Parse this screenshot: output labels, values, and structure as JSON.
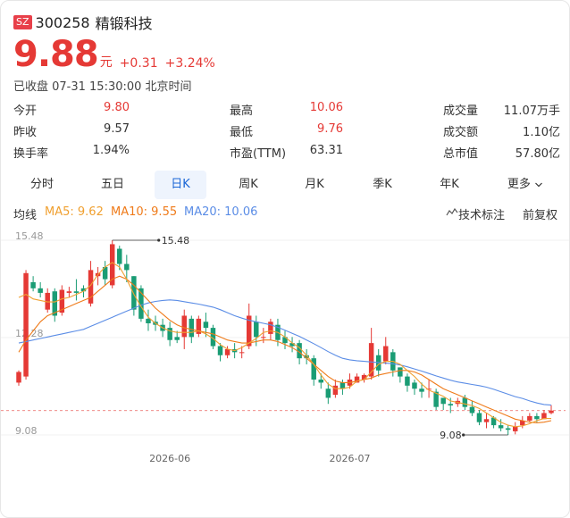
{
  "header": {
    "market": "SZ",
    "code": "300258",
    "name": "精锻科技"
  },
  "quote": {
    "price": "9.88",
    "unit": "元",
    "change": "+0.31",
    "change_pct": "+3.24%",
    "status": "已收盘 07-31 15:30:00 北京时间"
  },
  "stats": [
    [
      {
        "label": "今开",
        "value": "9.80",
        "color": "red"
      },
      {
        "label": "最高",
        "value": "10.06",
        "color": "red"
      },
      {
        "label": "成交量",
        "value": "11.07万手",
        "color": "normal"
      }
    ],
    [
      {
        "label": "昨收",
        "value": "9.57",
        "color": "normal"
      },
      {
        "label": "最低",
        "value": "9.76",
        "color": "red"
      },
      {
        "label": "成交额",
        "value": "1.10亿",
        "color": "normal"
      }
    ],
    [
      {
        "label": "换手率",
        "value": "1.94%",
        "color": "normal"
      },
      {
        "label": "市盈(TTM)",
        "value": "63.31",
        "color": "normal"
      },
      {
        "label": "总市值",
        "value": "57.80亿",
        "color": "normal"
      }
    ]
  ],
  "tabs": {
    "items": [
      "分时",
      "五日",
      "日K",
      "周K",
      "月K",
      "季K",
      "年K",
      "更多"
    ],
    "active": "日K",
    "more_icon": "chevron-down-icon"
  },
  "legend": {
    "label": "均线",
    "ma5": "MA5: 9.62",
    "ma10": "MA10: 9.55",
    "ma20": "MA20: 10.06",
    "tech_label": "技术标注",
    "tech_icon": "indicator-icon",
    "adjust": "前复权"
  },
  "colors": {
    "up": "#e53935",
    "down": "#1a9c74",
    "ma5": "#f0a030",
    "ma10": "#ef7b1a",
    "ma20": "#5b8de6",
    "accent": "#1a66d6"
  },
  "chart_data": {
    "type": "candlestick",
    "y_tick_labels": [
      "15.48",
      "12.28",
      "9.08"
    ],
    "ylim": [
      9.08,
      15.48
    ],
    "x_tick_labels": [
      "2026-06",
      "2026-07"
    ],
    "annotations": {
      "high": "15.48",
      "low": "9.08",
      "current_line": 9.88
    },
    "candles": [
      [
        10.8,
        11.15,
        10.7,
        11.2
      ],
      [
        11.0,
        14.4,
        10.9,
        14.5
      ],
      [
        14.1,
        13.9,
        13.8,
        14.3
      ],
      [
        13.9,
        13.75,
        13.6,
        14.1
      ],
      [
        13.2,
        13.75,
        13.1,
        13.9
      ],
      [
        13.8,
        13.0,
        12.8,
        13.9
      ],
      [
        13.1,
        13.85,
        13.0,
        14.0
      ],
      [
        13.75,
        13.8,
        13.6,
        13.95
      ],
      [
        13.8,
        13.75,
        13.5,
        14.2
      ],
      [
        13.9,
        13.8,
        13.6,
        14.0
      ],
      [
        13.4,
        14.5,
        13.3,
        14.8
      ],
      [
        14.3,
        14.4,
        14.0,
        14.6
      ],
      [
        14.6,
        14.2,
        14.0,
        14.8
      ],
      [
        14.0,
        15.35,
        13.9,
        15.48
      ],
      [
        15.2,
        14.7,
        14.5,
        15.3
      ],
      [
        14.7,
        14.5,
        14.1,
        15.0
      ],
      [
        14.3,
        13.2,
        13.0,
        14.3
      ],
      [
        13.9,
        12.9,
        12.8,
        14.0
      ],
      [
        12.9,
        12.75,
        12.5,
        13.2
      ],
      [
        12.8,
        12.7,
        12.5,
        13.0
      ],
      [
        12.7,
        12.5,
        12.3,
        12.9
      ],
      [
        12.6,
        12.2,
        12.0,
        12.8
      ],
      [
        12.3,
        12.2,
        12.1,
        12.5
      ],
      [
        12.3,
        13.0,
        11.9,
        13.2
      ],
      [
        12.9,
        12.3,
        12.1,
        13.0
      ],
      [
        12.4,
        12.9,
        12.3,
        13.0
      ],
      [
        12.8,
        12.6,
        12.3,
        13.1
      ],
      [
        12.6,
        12.0,
        11.9,
        12.7
      ],
      [
        12.0,
        11.7,
        11.5,
        12.1
      ],
      [
        11.7,
        11.9,
        11.6,
        12.0
      ],
      [
        11.9,
        11.8,
        11.6,
        12.1
      ],
      [
        11.8,
        11.8,
        11.6,
        12.0
      ],
      [
        12.0,
        13.0,
        11.9,
        13.4
      ],
      [
        12.8,
        12.3,
        12.0,
        13.0
      ],
      [
        12.3,
        12.3,
        12.1,
        12.6
      ],
      [
        12.4,
        12.8,
        12.2,
        12.9
      ],
      [
        12.7,
        12.2,
        12.0,
        12.9
      ],
      [
        12.3,
        12.1,
        11.9,
        12.5
      ],
      [
        12.1,
        12.0,
        11.8,
        12.3
      ],
      [
        12.1,
        11.6,
        11.4,
        12.2
      ],
      [
        11.7,
        11.6,
        11.4,
        11.9
      ],
      [
        11.6,
        10.9,
        10.7,
        11.7
      ],
      [
        10.9,
        10.8,
        10.6,
        11.1
      ],
      [
        10.6,
        10.3,
        10.1,
        10.8
      ],
      [
        10.4,
        10.7,
        10.3,
        10.9
      ],
      [
        10.8,
        10.6,
        10.4,
        10.9
      ],
      [
        10.7,
        10.9,
        10.6,
        11.1
      ],
      [
        10.8,
        11.0,
        10.8,
        11.1
      ],
      [
        10.9,
        11.05,
        10.8,
        11.1
      ],
      [
        11.0,
        12.1,
        10.9,
        12.6
      ],
      [
        11.7,
        11.2,
        11.0,
        11.9
      ],
      [
        11.5,
        12.0,
        11.4,
        12.3
      ],
      [
        11.8,
        11.2,
        11.0,
        11.9
      ],
      [
        11.3,
        11.0,
        10.8,
        11.3
      ],
      [
        11.0,
        10.7,
        10.5,
        11.1
      ],
      [
        10.8,
        10.6,
        10.4,
        10.9
      ],
      [
        10.6,
        10.5,
        10.3,
        10.8
      ],
      [
        10.6,
        10.6,
        10.3,
        10.9
      ],
      [
        10.5,
        10.0,
        9.9,
        10.6
      ],
      [
        10.3,
        10.1,
        9.9,
        10.3
      ],
      [
        10.1,
        10.05,
        9.8,
        10.3
      ],
      [
        10.1,
        10.2,
        10.0,
        10.3
      ],
      [
        10.3,
        10.0,
        9.9,
        10.4
      ],
      [
        10.0,
        9.8,
        9.7,
        10.2
      ],
      [
        9.8,
        9.5,
        9.4,
        9.9
      ],
      [
        9.5,
        9.6,
        9.3,
        9.8
      ],
      [
        9.65,
        9.4,
        9.3,
        9.7
      ],
      [
        9.4,
        9.3,
        9.2,
        9.6
      ],
      [
        9.3,
        9.25,
        9.08,
        9.4
      ],
      [
        9.2,
        9.35,
        9.1,
        9.5
      ],
      [
        9.4,
        9.55,
        9.3,
        9.7
      ],
      [
        9.55,
        9.7,
        9.5,
        9.8
      ],
      [
        9.7,
        9.6,
        9.5,
        9.8
      ],
      [
        9.6,
        9.8,
        9.6,
        9.9
      ],
      [
        9.8,
        9.88,
        9.76,
        10.06
      ]
    ],
    "ma5": [
      13.6,
      13.7,
      13.55,
      13.5,
      13.45,
      13.45,
      13.55,
      13.6,
      13.7,
      13.8,
      14.0,
      14.35,
      14.6,
      14.75,
      14.6,
      14.2,
      13.7,
      13.3,
      12.95,
      12.75,
      12.6,
      12.5,
      12.45,
      12.45,
      12.45,
      12.5,
      12.4,
      12.25,
      12.05,
      11.9,
      11.85,
      11.95,
      12.1,
      12.25,
      12.45,
      12.5,
      12.45,
      12.3,
      12.1,
      11.95,
      11.7,
      11.4,
      11.05,
      10.75,
      10.6,
      10.6,
      10.65,
      10.85,
      10.9,
      11.15,
      11.4,
      11.5,
      11.5,
      11.4,
      11.2,
      11.0,
      10.75,
      10.55,
      10.45,
      10.35,
      10.2,
      10.15,
      10.1,
      10.05,
      9.95,
      9.8,
      9.65,
      9.5,
      9.4,
      9.35,
      9.38,
      9.45,
      9.55,
      9.62,
      9.62
    ],
    "ma10": [
      11.8,
      12.2,
      12.5,
      12.8,
      13.0,
      13.1,
      13.2,
      13.3,
      13.4,
      13.5,
      13.6,
      13.8,
      14.0,
      14.2,
      14.3,
      14.2,
      14.0,
      13.75,
      13.5,
      13.25,
      13.05,
      12.85,
      12.7,
      12.6,
      12.55,
      12.5,
      12.45,
      12.4,
      12.3,
      12.2,
      12.15,
      12.1,
      12.1,
      12.15,
      12.2,
      12.2,
      12.15,
      12.05,
      11.95,
      11.8,
      11.6,
      11.4,
      11.2,
      11.0,
      10.85,
      10.8,
      10.8,
      10.85,
      10.9,
      10.95,
      11.05,
      11.1,
      11.15,
      11.2,
      11.2,
      11.15,
      11.05,
      10.9,
      10.75,
      10.6,
      10.5,
      10.4,
      10.3,
      10.2,
      10.1,
      10.0,
      9.9,
      9.8,
      9.7,
      9.6,
      9.55,
      9.5,
      9.48,
      9.5,
      9.55
    ],
    "ma20": [
      12.1,
      12.15,
      12.2,
      12.25,
      12.3,
      12.35,
      12.4,
      12.45,
      12.5,
      12.55,
      12.65,
      12.75,
      12.85,
      12.95,
      13.05,
      13.15,
      13.25,
      13.35,
      13.42,
      13.47,
      13.5,
      13.52,
      13.5,
      13.46,
      13.42,
      13.38,
      13.33,
      13.28,
      13.2,
      13.1,
      13.0,
      12.92,
      12.85,
      12.8,
      12.75,
      12.7,
      12.62,
      12.52,
      12.42,
      12.32,
      12.2,
      12.08,
      11.95,
      11.82,
      11.7,
      11.6,
      11.55,
      11.52,
      11.5,
      11.48,
      11.46,
      11.44,
      11.42,
      11.38,
      11.32,
      11.25,
      11.18,
      11.1,
      11.02,
      10.95,
      10.88,
      10.82,
      10.78,
      10.74,
      10.7,
      10.65,
      10.58,
      10.5,
      10.42,
      10.34,
      10.28,
      10.2,
      10.13,
      10.08,
      10.06
    ]
  }
}
